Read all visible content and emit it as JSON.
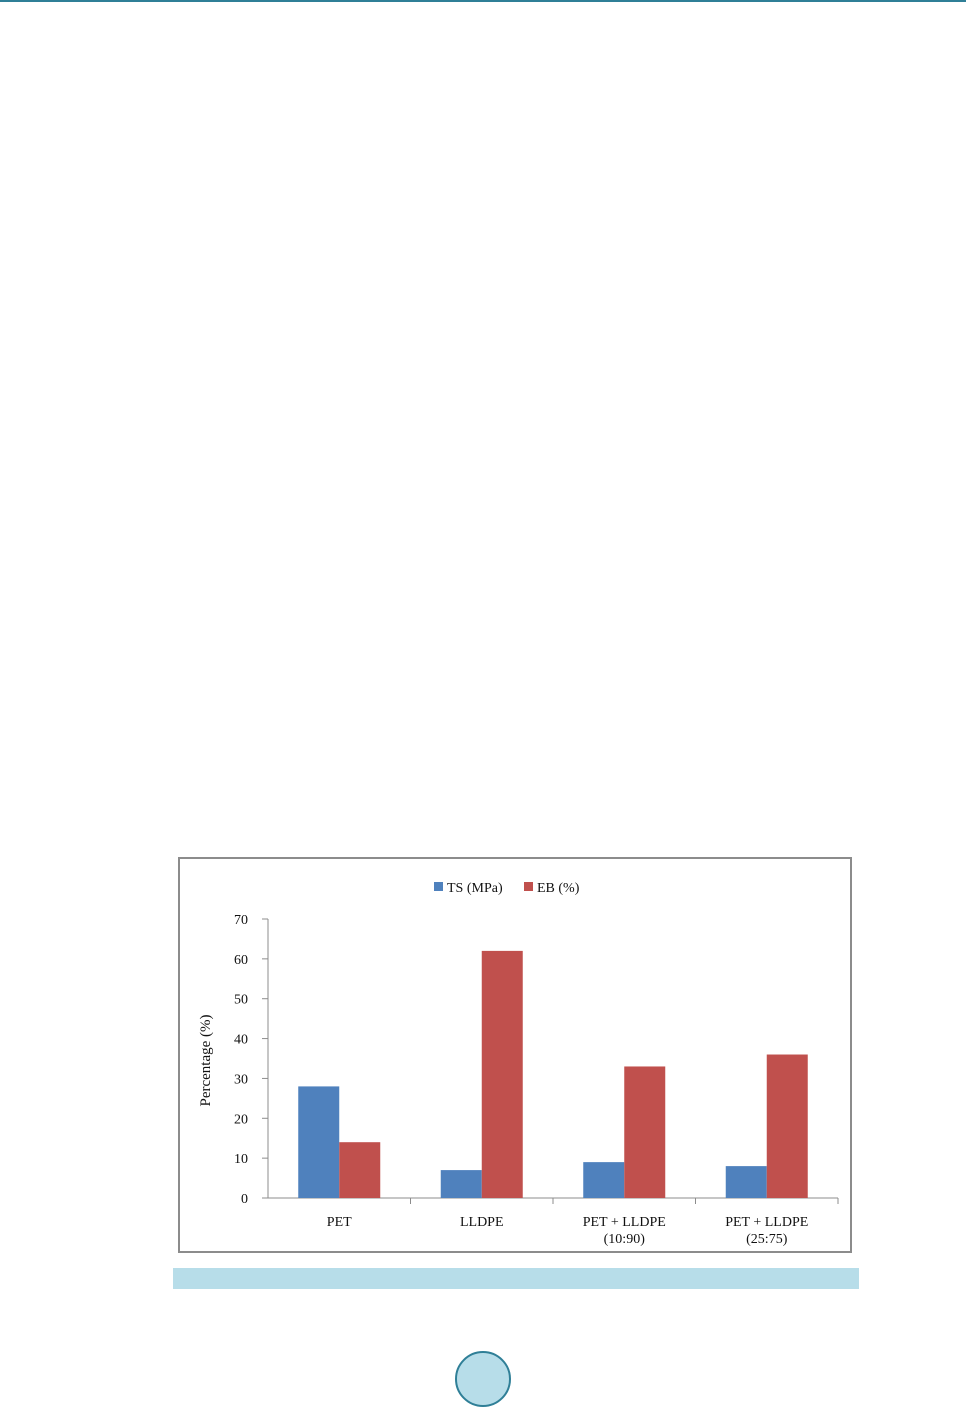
{
  "page": {
    "page_number": ""
  },
  "chart_data": {
    "type": "bar",
    "categories": [
      "PET",
      "LLDPE",
      "PET + LLDPE (10:90)",
      "PET + LLDPE (25:75)"
    ],
    "category_lines": [
      [
        "PET"
      ],
      [
        "LLDPE"
      ],
      [
        "PET + LLDPE",
        "(10:90)"
      ],
      [
        "PET + LLDPE",
        "(25:75)"
      ]
    ],
    "series": [
      {
        "name": "TS (MPa)",
        "values": [
          28,
          7,
          9,
          8
        ],
        "color": "#4f81bd"
      },
      {
        "name": "EB (%)",
        "values": [
          14,
          62,
          33,
          36
        ],
        "color": "#c0504d"
      }
    ],
    "title": "",
    "xlabel": "",
    "ylabel": "Percentage (%)",
    "ylim": [
      0,
      70
    ],
    "yticks": [
      0,
      10,
      20,
      30,
      40,
      50,
      60,
      70
    ],
    "grid": false,
    "legend_position": "top"
  }
}
